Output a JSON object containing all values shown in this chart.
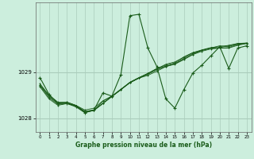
{
  "title": "Graphe pression niveau de la mer (hPa)",
  "bg_color": "#cceedd",
  "grid_color_v": "#aaccbb",
  "grid_color_h": "#aaccbb",
  "line_color": "#1a5c1a",
  "xlim": [
    -0.5,
    23.5
  ],
  "ylim": [
    1027.7,
    1030.5
  ],
  "yticks": [
    1028,
    1029
  ],
  "xticks": [
    0,
    1,
    2,
    3,
    4,
    5,
    6,
    7,
    8,
    9,
    10,
    11,
    12,
    13,
    14,
    15,
    16,
    17,
    18,
    19,
    20,
    21,
    22,
    23
  ],
  "series": [
    [
      1028.72,
      1028.5,
      1028.35,
      1028.35,
      1028.28,
      1028.18,
      1028.22,
      1028.38,
      1028.48,
      1028.62,
      1028.78,
      1028.88,
      1028.97,
      1029.07,
      1029.17,
      1029.22,
      1029.32,
      1029.42,
      1029.47,
      1029.52,
      1029.57,
      1029.55,
      1029.62,
      1029.62
    ],
    [
      1028.68,
      1028.42,
      1028.28,
      1028.32,
      1028.27,
      1028.15,
      1028.18,
      1028.33,
      1028.47,
      1028.62,
      1028.77,
      1028.87,
      1028.97,
      1029.07,
      1029.13,
      1029.18,
      1029.28,
      1029.38,
      1029.47,
      1029.52,
      1029.52,
      1029.52,
      1029.58,
      1029.62
    ],
    [
      1028.72,
      1028.47,
      1028.32,
      1028.33,
      1028.27,
      1028.13,
      1028.17,
      1028.32,
      1028.47,
      1028.62,
      1028.77,
      1028.87,
      1028.93,
      1029.02,
      1029.12,
      1029.17,
      1029.27,
      1029.38,
      1029.45,
      1029.5,
      1029.52,
      1029.53,
      1029.6,
      1029.62
    ],
    [
      1028.7,
      1028.45,
      1028.3,
      1028.32,
      1028.27,
      1028.13,
      1028.17,
      1028.32,
      1028.48,
      1028.63,
      1028.77,
      1028.87,
      1028.95,
      1029.05,
      1029.12,
      1029.18,
      1029.3,
      1029.4,
      1029.47,
      1029.52,
      1029.53,
      1029.57,
      1029.6,
      1029.63
    ],
    [
      1028.75,
      1028.5,
      1028.33,
      1028.35,
      1028.28,
      1028.15,
      1028.18,
      1028.37,
      1028.48,
      1028.63,
      1028.78,
      1028.88,
      1028.97,
      1029.08,
      1029.15,
      1029.2,
      1029.33,
      1029.42,
      1029.48,
      1029.53,
      1029.55,
      1029.58,
      1029.62,
      1029.63
    ]
  ],
  "special_series": {
    "x": [
      0,
      1,
      2,
      3,
      4,
      5,
      6,
      7,
      8,
      9,
      10,
      11,
      12,
      13,
      14,
      15,
      16,
      17,
      18,
      19,
      20,
      21,
      22,
      23
    ],
    "y": [
      1028.88,
      1028.52,
      1028.32,
      1028.32,
      1028.25,
      1028.12,
      1028.18,
      1028.55,
      1028.48,
      1028.95,
      1030.22,
      1030.25,
      1029.52,
      1029.12,
      1028.42,
      1028.22,
      1028.62,
      1028.98,
      1029.15,
      1029.35,
      1029.55,
      1029.08,
      1029.52,
      1029.57
    ]
  }
}
